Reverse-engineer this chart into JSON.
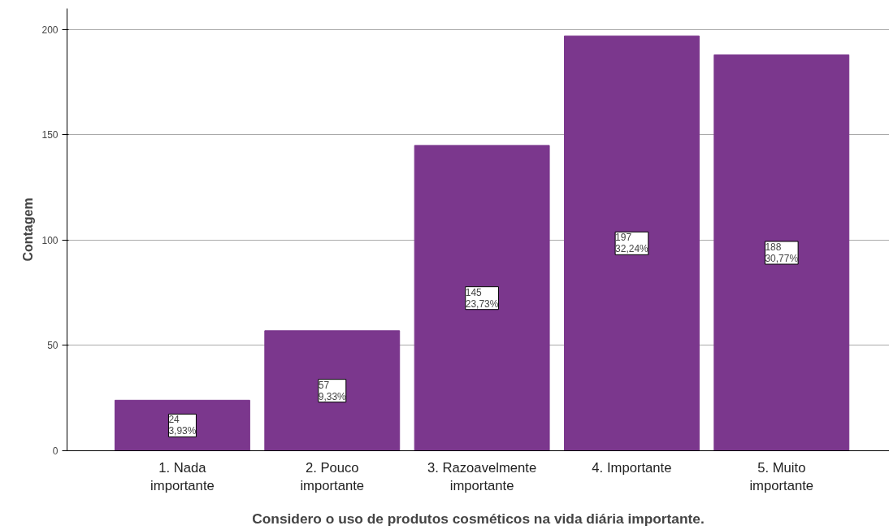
{
  "chart_data": {
    "type": "bar",
    "xlabel": "Considero o uso de produtos cosméticos na vida diária importante.",
    "ylabel": "Contagem",
    "categories": [
      "1. Nada importante",
      "2. Pouco importante",
      "3. Razoavelmente importante",
      "4. Importante",
      "5. Muito importante"
    ],
    "values": [
      24,
      57,
      145,
      197,
      188
    ],
    "value_labels": [
      "24\n3,93%",
      "57\n9,33%",
      "145\n23,73%",
      "197\n32,24%",
      "188\n30,77%"
    ],
    "color": "#7b378d",
    "ylim": [
      0,
      210
    ],
    "yticks": [
      0,
      50,
      100,
      150,
      200
    ],
    "grid": "y"
  }
}
